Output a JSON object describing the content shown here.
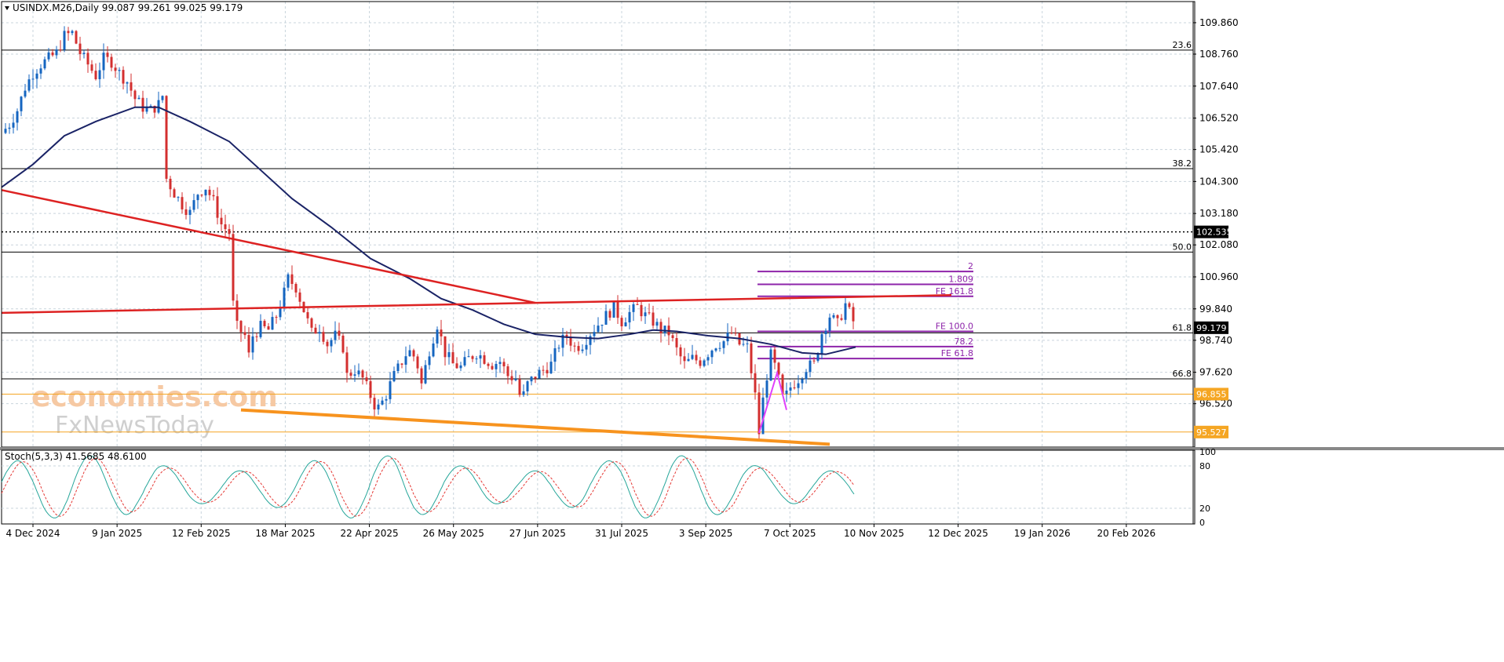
{
  "window": {
    "header_text": "USINDX.M26,Daily  99.087 99.261 99.025 99.179"
  },
  "watermark": {
    "line1": "economies.com",
    "line2": "FxNewsToday"
  },
  "chart_data": {
    "type": "candlestick",
    "symbol": "USINDX.M26",
    "timeframe": "Daily",
    "ohlc_header": {
      "open": 99.087,
      "high": 99.261,
      "low": 99.025,
      "close": 99.179
    },
    "ylim": [
      95.0,
      110.6
    ],
    "y_ticks": [
      "109.860",
      "108.760",
      "107.640",
      "106.520",
      "105.420",
      "104.300",
      "103.180",
      "102.080",
      "100.960",
      "99.840",
      "98.740",
      "97.620",
      "96.520"
    ],
    "x_ticks": [
      "4 Dec 2024",
      "9 Jan 2025",
      "12 Feb 2025",
      "18 Mar 2025",
      "22 Apr 2025",
      "26 May 2025",
      "27 Jun 2025",
      "31 Jul 2025",
      "3 Sep 2025",
      "7 Oct 2025",
      "10 Nov 2025",
      "12 Dec 2025",
      "19 Jan 2026",
      "20 Feb 2026"
    ],
    "current_price": "99.179",
    "price_labels": [
      {
        "text": "102.535",
        "value": 102.535,
        "color": "#000000"
      },
      {
        "text": "96.855",
        "value": 96.855,
        "color": "#f5a623"
      },
      {
        "text": "95.527",
        "value": 95.527,
        "color": "#f5a623"
      }
    ],
    "fib_retracement": [
      {
        "label": "23.6",
        "value": 108.9
      },
      {
        "label": "38.2",
        "value": 104.75
      },
      {
        "label": "50.0",
        "value": 101.83
      },
      {
        "label": "61.8",
        "value": 99.0
      },
      {
        "label": "66.8",
        "value": 97.39
      }
    ],
    "fib_extension": [
      {
        "label": "2",
        "value": 101.15
      },
      {
        "label": "1.809",
        "value": 100.7
      },
      {
        "label": "FE 161.8",
        "value": 100.28
      },
      {
        "label": "FE 100.0",
        "value": 99.05
      },
      {
        "label": "78.2",
        "value": 98.52
      },
      {
        "label": "FE 61.8",
        "value": 98.1
      }
    ],
    "close_path": [
      [
        0,
        106.0
      ],
      [
        10,
        106.3
      ],
      [
        20,
        106.8
      ],
      [
        30,
        107.6
      ],
      [
        40,
        108.1
      ],
      [
        50,
        108.4
      ],
      [
        60,
        108.6
      ],
      [
        70,
        108.8
      ],
      [
        80,
        109.4
      ],
      [
        90,
        109.5
      ],
      [
        100,
        108.8
      ],
      [
        110,
        108.4
      ],
      [
        120,
        108.0
      ],
      [
        130,
        108.6
      ],
      [
        140,
        108.5
      ],
      [
        150,
        108.1
      ],
      [
        160,
        107.8
      ],
      [
        170,
        107.2
      ],
      [
        180,
        106.9
      ],
      [
        190,
        106.8
      ],
      [
        200,
        107.0
      ],
      [
        205,
        107.3
      ],
      [
        210,
        104.4
      ],
      [
        220,
        103.9
      ],
      [
        230,
        103.5
      ],
      [
        240,
        103.2
      ],
      [
        250,
        103.9
      ],
      [
        260,
        104.1
      ],
      [
        270,
        103.6
      ],
      [
        280,
        102.8
      ],
      [
        290,
        102.5
      ],
      [
        295,
        100.0
      ],
      [
        300,
        99.2
      ],
      [
        310,
        98.9
      ],
      [
        315,
        98.2
      ],
      [
        320,
        98.9
      ],
      [
        330,
        99.2
      ],
      [
        340,
        99.1
      ],
      [
        350,
        99.6
      ],
      [
        360,
        100.4
      ],
      [
        365,
        100.9
      ],
      [
        375,
        100.6
      ],
      [
        385,
        99.8
      ],
      [
        395,
        99.0
      ],
      [
        405,
        99.2
      ],
      [
        415,
        98.6
      ],
      [
        425,
        98.9
      ],
      [
        435,
        98.5
      ],
      [
        440,
        97.5
      ],
      [
        450,
        97.7
      ],
      [
        460,
        97.4
      ],
      [
        470,
        96.8
      ],
      [
        478,
        96.3
      ],
      [
        488,
        96.7
      ],
      [
        498,
        97.4
      ],
      [
        508,
        97.9
      ],
      [
        518,
        98.4
      ],
      [
        528,
        98.1
      ],
      [
        535,
        97.2
      ],
      [
        545,
        98.4
      ],
      [
        555,
        99.3
      ],
      [
        565,
        98.3
      ],
      [
        575,
        97.9
      ],
      [
        585,
        97.8
      ],
      [
        595,
        98.1
      ],
      [
        605,
        98.3
      ],
      [
        615,
        98.1
      ],
      [
        625,
        97.9
      ],
      [
        635,
        98.0
      ],
      [
        645,
        97.5
      ],
      [
        655,
        97.4
      ],
      [
        662,
        96.6
      ],
      [
        670,
        97.2
      ],
      [
        680,
        97.5
      ],
      [
        690,
        97.7
      ],
      [
        700,
        97.9
      ],
      [
        710,
        98.6
      ],
      [
        720,
        98.9
      ],
      [
        730,
        98.5
      ],
      [
        740,
        98.6
      ],
      [
        750,
        99.0
      ],
      [
        760,
        99.3
      ],
      [
        770,
        99.6
      ],
      [
        780,
        99.9
      ],
      [
        790,
        99.4
      ],
      [
        800,
        99.7
      ],
      [
        810,
        99.9
      ],
      [
        820,
        99.6
      ],
      [
        830,
        99.4
      ],
      [
        840,
        99.1
      ],
      [
        850,
        99.0
      ],
      [
        860,
        98.4
      ],
      [
        870,
        97.9
      ],
      [
        880,
        98.1
      ],
      [
        890,
        98.0
      ],
      [
        900,
        98.3
      ],
      [
        910,
        98.6
      ],
      [
        920,
        98.7
      ],
      [
        930,
        99.0
      ],
      [
        940,
        98.6
      ],
      [
        950,
        98.5
      ],
      [
        960,
        96.8
      ],
      [
        965,
        95.5
      ],
      [
        972,
        97.1
      ],
      [
        980,
        98.2
      ],
      [
        988,
        97.6
      ],
      [
        996,
        96.6
      ],
      [
        1005,
        97.1
      ],
      [
        1015,
        97.4
      ],
      [
        1025,
        97.8
      ],
      [
        1035,
        97.9
      ],
      [
        1045,
        99.0
      ],
      [
        1055,
        99.6
      ],
      [
        1065,
        99.3
      ],
      [
        1075,
        100.0
      ],
      [
        1082,
        99.6
      ],
      [
        1088,
        99.2
      ]
    ],
    "moving_average": {
      "name": "",
      "values": [
        [
          0,
          104.1
        ],
        [
          40,
          104.9
        ],
        [
          80,
          105.9
        ],
        [
          120,
          106.4
        ],
        [
          170,
          106.9
        ],
        [
          200,
          106.9
        ],
        [
          240,
          106.4
        ],
        [
          290,
          105.7
        ],
        [
          330,
          104.7
        ],
        [
          370,
          103.7
        ],
        [
          420,
          102.7
        ],
        [
          470,
          101.6
        ],
        [
          520,
          100.9
        ],
        [
          560,
          100.2
        ],
        [
          600,
          99.8
        ],
        [
          640,
          99.3
        ],
        [
          680,
          98.95
        ],
        [
          720,
          98.85
        ],
        [
          760,
          98.8
        ],
        [
          800,
          98.95
        ],
        [
          830,
          99.1
        ],
        [
          860,
          99.05
        ],
        [
          900,
          98.9
        ],
        [
          940,
          98.8
        ],
        [
          980,
          98.6
        ],
        [
          1020,
          98.3
        ],
        [
          1050,
          98.25
        ],
        [
          1088,
          98.5
        ]
      ]
    },
    "trendlines": [
      {
        "color": "#dd2222",
        "width": 2.5,
        "points": [
          [
            0,
            104.0
          ],
          [
            680,
            100.05
          ]
        ]
      },
      {
        "color": "#dd2222",
        "width": 2.5,
        "points": [
          [
            0,
            99.7
          ],
          [
            680,
            100.05
          ],
          [
            1210,
            100.32
          ]
        ]
      },
      {
        "color": "#f7931e",
        "width": 4,
        "points": [
          [
            305,
            96.3
          ],
          [
            1055,
            95.1
          ]
        ]
      },
      {
        "color": "#e040fb",
        "width": 2,
        "points": [
          [
            965,
            95.5
          ],
          [
            988,
            97.6
          ],
          [
            1000,
            96.3
          ]
        ]
      }
    ],
    "stochastic": {
      "header": "Stoch(5,3,3) 41.5685 48.6100",
      "k": 41.5685,
      "d": 48.61,
      "levels": [
        20,
        80
      ],
      "ylim": [
        0,
        100
      ],
      "y_ticks": [
        "100",
        "80",
        "20",
        "0"
      ]
    }
  }
}
